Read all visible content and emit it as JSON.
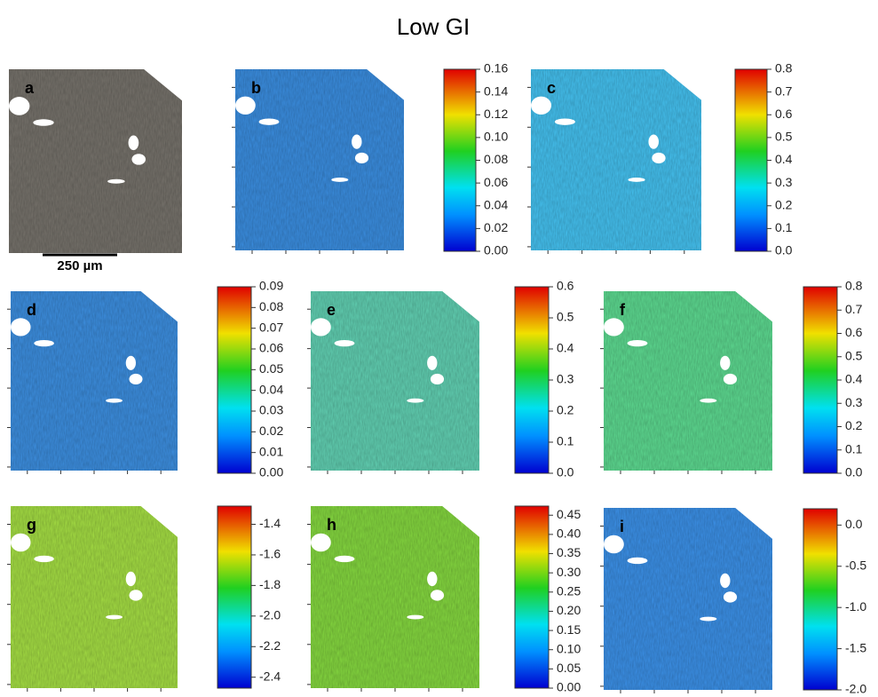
{
  "title": "Low GI",
  "scale_bar": "250 µm",
  "panels": [
    {
      "label": "a",
      "color": "#77736c",
      "colorbar_ticks": null
    },
    {
      "label": "b",
      "color": "#3b8fe2",
      "colorbar_ticks": [
        "0.16",
        "0.14",
        "0.12",
        "0.10",
        "0.08",
        "0.06",
        "0.04",
        "0.02",
        "0.00"
      ]
    },
    {
      "label": "c",
      "color": "#45c3f2",
      "colorbar_ticks": [
        "0.8",
        "0.7",
        "0.6",
        "0.5",
        "0.4",
        "0.3",
        "0.2",
        "0.1",
        "0.0"
      ]
    },
    {
      "label": "d",
      "color": "#3d90e2",
      "colorbar_ticks": [
        "0.09",
        "0.08",
        "0.07",
        "0.06",
        "0.05",
        "0.04",
        "0.03",
        "0.02",
        "0.01",
        "0.00"
      ]
    },
    {
      "label": "e",
      "color": "#62d2b4",
      "colorbar_ticks": [
        "0.6",
        "0.5",
        "0.4",
        "0.3",
        "0.2",
        "0.1",
        "0.0"
      ]
    },
    {
      "label": "f",
      "color": "#5edc92",
      "colorbar_ticks": [
        "0.8",
        "0.7",
        "0.6",
        "0.5",
        "0.4",
        "0.3",
        "0.2",
        "0.1",
        "0.0"
      ]
    },
    {
      "label": "g",
      "color": "#a6e044",
      "colorbar_ticks": [
        "-1.4",
        "-1.6",
        "-1.8",
        "-2.0",
        "-2.2",
        "-2.4"
      ]
    },
    {
      "label": "h",
      "color": "#86da40",
      "colorbar_ticks": [
        "0.45",
        "0.40",
        "0.35",
        "0.30",
        "0.25",
        "0.20",
        "0.15",
        "0.10",
        "0.05",
        "0.00"
      ]
    },
    {
      "label": "i",
      "color": "#3c92ea",
      "colorbar_ticks": [
        "0.0",
        "-0.5",
        "-1.0",
        "-1.5",
        "-2.0"
      ]
    }
  ]
}
